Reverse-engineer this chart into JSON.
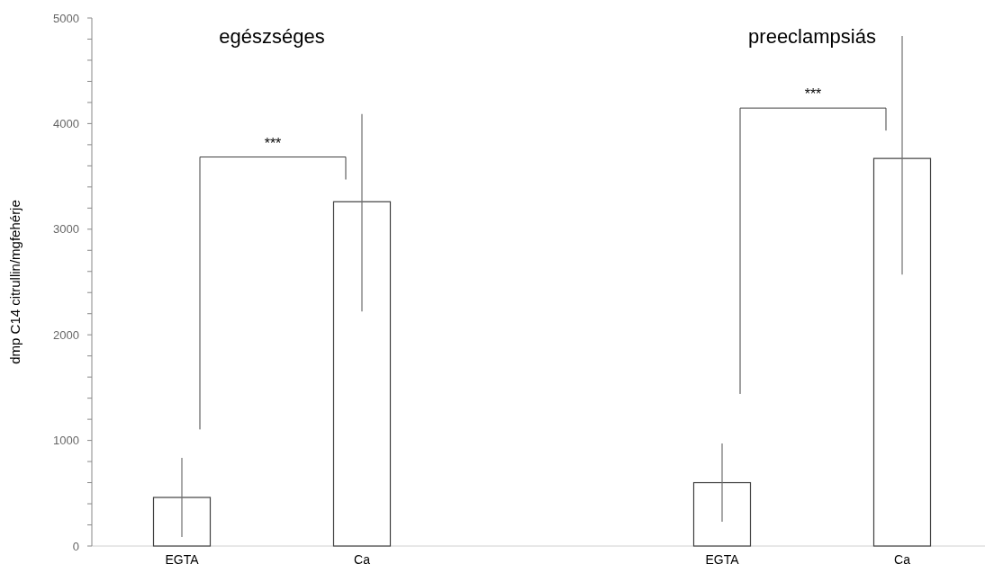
{
  "chart_data": {
    "type": "bar",
    "ylabel": "dmp C14 citrullin/mgfehérje",
    "categories": [
      "EGTA",
      "Ca",
      null,
      "EGTA",
      "Ca"
    ],
    "values": [
      460,
      3260,
      null,
      600,
      3670
    ],
    "errors": [
      375,
      [
        2220,
        4090
      ],
      null,
      370,
      [
        2570,
        4830
      ]
    ],
    "color": "#ffffff",
    "ylim": [
      0,
      5000
    ],
    "yticks": [
      0,
      {
        "value": 200,
        "label": null
      },
      {
        "value": 400,
        "label": null
      },
      {
        "value": 600,
        "label": null
      },
      {
        "value": 800,
        "label": null
      },
      1000,
      {
        "value": 1200,
        "label": null
      },
      {
        "value": 1400,
        "label": null
      },
      {
        "value": 1600,
        "label": null
      },
      {
        "value": 1800,
        "label": null
      },
      2000,
      {
        "value": 2200,
        "label": null
      },
      {
        "value": 2400,
        "label": null
      },
      {
        "value": 2600,
        "label": null
      },
      {
        "value": 2800,
        "label": null
      },
      3000,
      {
        "value": 3200,
        "label": null
      },
      {
        "value": 3400,
        "label": null
      },
      {
        "value": 3600,
        "label": null
      },
      {
        "value": 3800,
        "label": null
      },
      4000,
      {
        "value": 4200,
        "label": null
      },
      {
        "value": 4400,
        "label": null
      },
      {
        "value": 4600,
        "label": null
      },
      {
        "value": 4800,
        "label": null
      },
      5000
    ],
    "annotations": [
      "egészséges",
      "preeclampsiás",
      "***",
      "***"
    ]
  }
}
